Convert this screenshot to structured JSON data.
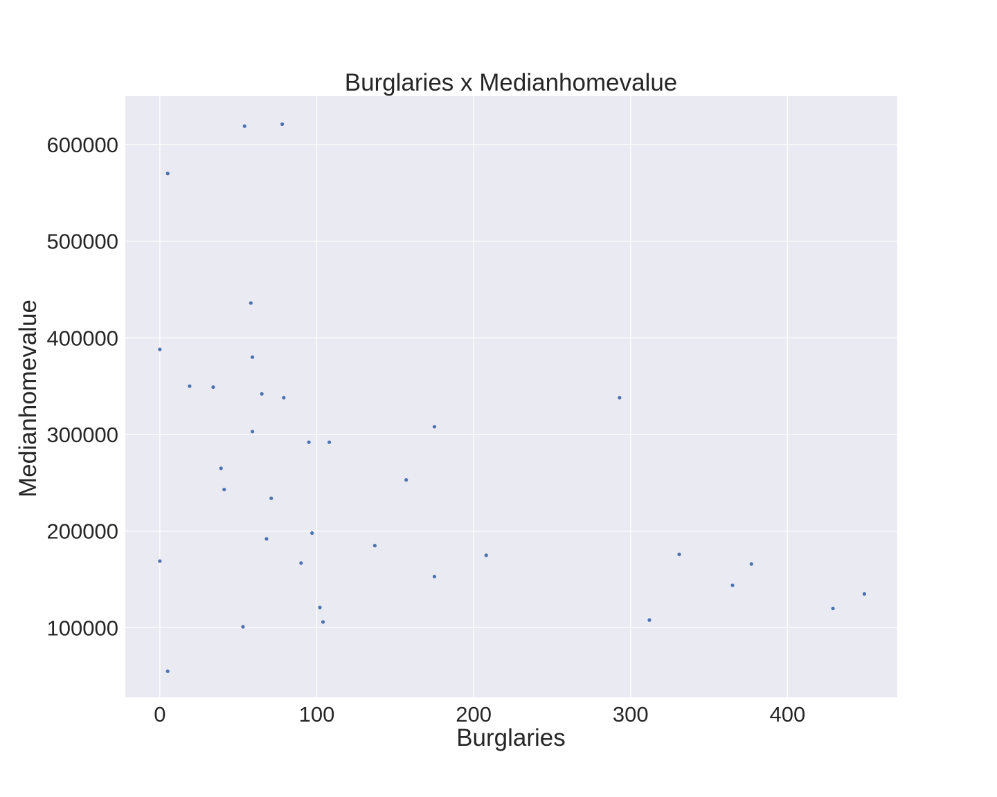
{
  "chart_data": {
    "type": "scatter",
    "title": "Burglaries x Medianhomevalue",
    "xlabel": "Burglaries",
    "ylabel": "Medianhomevalue",
    "xlim": [
      -22,
      470
    ],
    "ylim": [
      28000,
      650000
    ],
    "xticks": [
      0,
      100,
      200,
      300,
      400
    ],
    "yticks": [
      100000,
      200000,
      300000,
      400000,
      500000,
      600000
    ],
    "grid": true,
    "marker_color": "#4c72b0",
    "background_color": "#eaeaf2",
    "points": [
      {
        "x": 54,
        "y": 619000
      },
      {
        "x": 78,
        "y": 621000
      },
      {
        "x": 5,
        "y": 570000
      },
      {
        "x": 58,
        "y": 436000
      },
      {
        "x": 0,
        "y": 388000
      },
      {
        "x": 59,
        "y": 380000
      },
      {
        "x": 19,
        "y": 350000
      },
      {
        "x": 34,
        "y": 349000
      },
      {
        "x": 65,
        "y": 342000
      },
      {
        "x": 79,
        "y": 338000
      },
      {
        "x": 293,
        "y": 338000
      },
      {
        "x": 175,
        "y": 308000
      },
      {
        "x": 59,
        "y": 303000
      },
      {
        "x": 95,
        "y": 292000
      },
      {
        "x": 108,
        "y": 292000
      },
      {
        "x": 39,
        "y": 265000
      },
      {
        "x": 157,
        "y": 253000
      },
      {
        "x": 41,
        "y": 243000
      },
      {
        "x": 71,
        "y": 234000
      },
      {
        "x": 97,
        "y": 198000
      },
      {
        "x": 68,
        "y": 192000
      },
      {
        "x": 137,
        "y": 185000
      },
      {
        "x": 331,
        "y": 176000
      },
      {
        "x": 208,
        "y": 175000
      },
      {
        "x": 0,
        "y": 169000
      },
      {
        "x": 90,
        "y": 167000
      },
      {
        "x": 377,
        "y": 166000
      },
      {
        "x": 175,
        "y": 153000
      },
      {
        "x": 365,
        "y": 144000
      },
      {
        "x": 449,
        "y": 135000
      },
      {
        "x": 102,
        "y": 121000
      },
      {
        "x": 429,
        "y": 120000
      },
      {
        "x": 312,
        "y": 108000
      },
      {
        "x": 104,
        "y": 106000
      },
      {
        "x": 53,
        "y": 101000
      },
      {
        "x": 5,
        "y": 55000
      }
    ]
  }
}
